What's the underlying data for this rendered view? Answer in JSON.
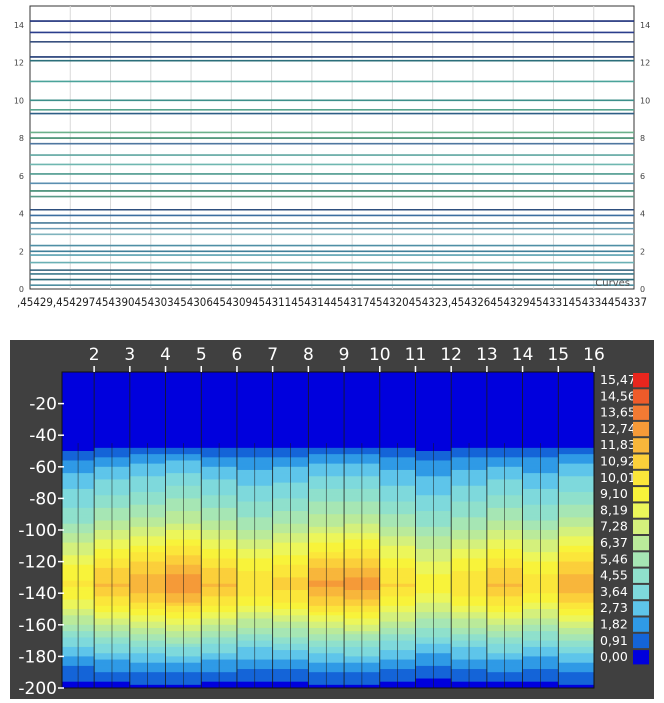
{
  "chart_data": [
    {
      "type": "line",
      "legend": {
        "label": "Curves",
        "placement": "bottom-right"
      },
      "ylim": [
        0,
        15
      ],
      "y_ticks": [
        "0",
        "2",
        "4",
        "6",
        "8",
        "10",
        "12",
        "14"
      ],
      "x_tick_text": ",45429,454297454390454303454306454309454311454314454317454320454323,454326454329454331454334454337",
      "grid": true,
      "series": [
        {
          "y": 14.2,
          "color": "#1c2f7a"
        },
        {
          "y": 13.6,
          "color": "#2a3d8c"
        },
        {
          "y": 13.1,
          "color": "#39507f"
        },
        {
          "y": 12.3,
          "color": "#1f3a74"
        },
        {
          "y": 12.1,
          "color": "#2b6f7a"
        },
        {
          "y": 11.0,
          "color": "#4aa39a"
        },
        {
          "y": 10.0,
          "color": "#3d8f8a"
        },
        {
          "y": 9.5,
          "color": "#57a38f"
        },
        {
          "y": 9.3,
          "color": "#2e5f86"
        },
        {
          "y": 8.3,
          "color": "#6cb18b"
        },
        {
          "y": 8.0,
          "color": "#3f8b6d"
        },
        {
          "y": 7.7,
          "color": "#4f77a0"
        },
        {
          "y": 7.1,
          "color": "#5ea6a0"
        },
        {
          "y": 6.6,
          "color": "#6fb7b0"
        },
        {
          "y": 6.1,
          "color": "#4d9a8e"
        },
        {
          "y": 5.6,
          "color": "#5a8fb0"
        },
        {
          "y": 5.2,
          "color": "#3f8a70"
        },
        {
          "y": 4.9,
          "color": "#5a9a88"
        },
        {
          "y": 4.2,
          "color": "#2e4f7e"
        },
        {
          "y": 3.9,
          "color": "#3b6ea0"
        },
        {
          "y": 3.5,
          "color": "#4a7b9a"
        },
        {
          "y": 3.2,
          "color": "#6c9cb5"
        },
        {
          "y": 2.9,
          "color": "#7fb3bd"
        },
        {
          "y": 2.3,
          "color": "#4f8fa5"
        },
        {
          "y": 2.0,
          "color": "#3f7f9a"
        },
        {
          "y": 1.8,
          "color": "#5aa0b0"
        },
        {
          "y": 1.4,
          "color": "#6ab0b5"
        },
        {
          "y": 1.0,
          "color": "#2f5f7a"
        },
        {
          "y": 0.8,
          "color": "#3d7a8c"
        },
        {
          "y": 0.5,
          "color": "#2a6a7a"
        },
        {
          "y": 0.2,
          "color": "#4f8fa0"
        }
      ]
    },
    {
      "type": "heatmap",
      "subtype": "filled-contour",
      "x_ticks": [
        "2",
        "3",
        "4",
        "5",
        "6",
        "7",
        "8",
        "9",
        "10",
        "11",
        "12",
        "13",
        "14",
        "15",
        "16"
      ],
      "y_ticks": [
        "-20",
        "-40",
        "-60",
        "-80",
        "-100",
        "-120",
        "-140",
        "-160",
        "-180",
        "-200"
      ],
      "xlim": [
        1.1,
        16
      ],
      "ylim": [
        -200,
        0
      ],
      "grid": true,
      "legend": {
        "placement": "right",
        "levels": [
          "15,47",
          "14,56",
          "13,65",
          "12,74",
          "11,83",
          "10,92",
          "10,01",
          "9,10",
          "8,19",
          "7,28",
          "6,37",
          "5,46",
          "4,55",
          "3,64",
          "2,73",
          "1,82",
          "0,91",
          "0,00"
        ],
        "colors": [
          "#e8261e",
          "#ee5b2a",
          "#f27a33",
          "#f59a38",
          "#f8b63b",
          "#fbcf3a",
          "#fbe63a",
          "#f8f33a",
          "#ecf65a",
          "#d4f07c",
          "#baea9a",
          "#a6e6b4",
          "#8fe0cc",
          "#7ed9dc",
          "#5ec5ea",
          "#2f9ae6",
          "#1464d8",
          "#0000dd"
        ]
      },
      "profile": [
        {
          "depth": 0,
          "value": 0.0
        },
        {
          "depth": -45,
          "value": 0.0
        },
        {
          "depth": -50,
          "value": 1.3
        },
        {
          "depth": -58,
          "value": 2.6
        },
        {
          "depth": -68,
          "value": 3.6
        },
        {
          "depth": -80,
          "value": 4.8
        },
        {
          "depth": -95,
          "value": 6.4
        },
        {
          "depth": -110,
          "value": 8.8
        },
        {
          "depth": -125,
          "value": 11.0
        },
        {
          "depth": -135,
          "value": 12.0
        },
        {
          "depth": -145,
          "value": 10.6
        },
        {
          "depth": -155,
          "value": 8.4
        },
        {
          "depth": -165,
          "value": 6.2
        },
        {
          "depth": -175,
          "value": 4.0
        },
        {
          "depth": -185,
          "value": 2.4
        },
        {
          "depth": -195,
          "value": 1.1
        },
        {
          "depth": -200,
          "value": 0.6
        }
      ],
      "column_scale": [
        0.85,
        1.0,
        1.05,
        1.12,
        1.0,
        0.9,
        0.95,
        1.08,
        1.1,
        0.92,
        0.8,
        0.9,
        1.0,
        0.88,
        1.05
      ]
    }
  ]
}
